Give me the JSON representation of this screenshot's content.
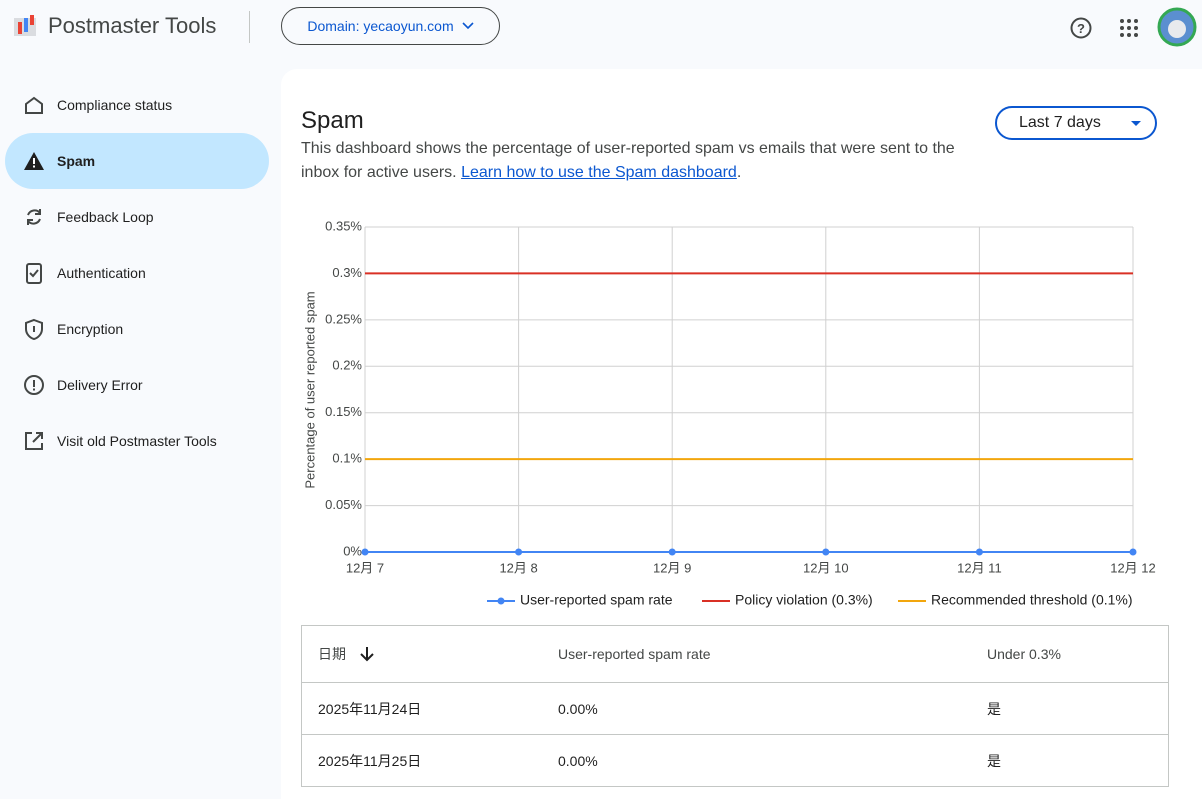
{
  "header": {
    "title": "Postmaster Tools",
    "domain_button": "Domain: yecaoyun.com"
  },
  "nav": {
    "items": [
      "Compliance status",
      "Spam",
      "Feedback Loop",
      "Authentication",
      "Encryption",
      "Delivery Error",
      "Visit old Postmaster Tools"
    ],
    "active": 1
  },
  "content": {
    "title": "Spam",
    "description": "This dashboard shows the percentage of user-reported spam vs emails that were sent to the inbox for active users. ",
    "link": "Learn how to use the Spam dashboard",
    "description_end": ".",
    "range_select": "Last 7 days"
  },
  "chart_data": {
    "type": "line",
    "y_label": "Percentage of user reported spam",
    "categories": [
      "12月 7",
      "12月 8",
      "12月 9",
      "12月 10",
      "12月 11",
      "12月 12"
    ],
    "series": [
      {
        "name": "User-reported spam rate",
        "color": "#4285f4",
        "marker": true,
        "values": [
          0,
          0,
          0,
          0,
          0,
          0
        ]
      },
      {
        "name": "Policy violation (0.3%)",
        "color": "#d93025",
        "marker": false,
        "values": [
          0.3,
          0.3,
          0.3,
          0.3,
          0.3,
          0.3
        ]
      },
      {
        "name": "Recommended threshold (0.1%)",
        "color": "#f2a60d",
        "marker": false,
        "values": [
          0.1,
          0.1,
          0.1,
          0.1,
          0.1,
          0.1
        ]
      }
    ],
    "ylim": [
      0,
      0.35
    ],
    "yticks": [
      {
        "value": 0,
        "label": "0%"
      },
      {
        "value": 0.05,
        "label": "0.05%"
      },
      {
        "value": 0.1,
        "label": "0.1%"
      },
      {
        "value": 0.15,
        "label": "0.15%"
      },
      {
        "value": 0.2,
        "label": "0.2%"
      },
      {
        "value": 0.25,
        "label": "0.25%"
      },
      {
        "value": 0.3,
        "label": "0.3%"
      },
      {
        "value": 0.35,
        "label": "0.35%"
      }
    ],
    "grid": true,
    "legend": "bottom"
  },
  "table": {
    "header": [
      "日期",
      "User-reported spam rate",
      "Under 0.3%"
    ],
    "rows": [
      [
        "2025年11月24日",
        "0.00%",
        "是"
      ],
      [
        "2025年11月25日",
        "0.00%",
        "是"
      ]
    ]
  }
}
